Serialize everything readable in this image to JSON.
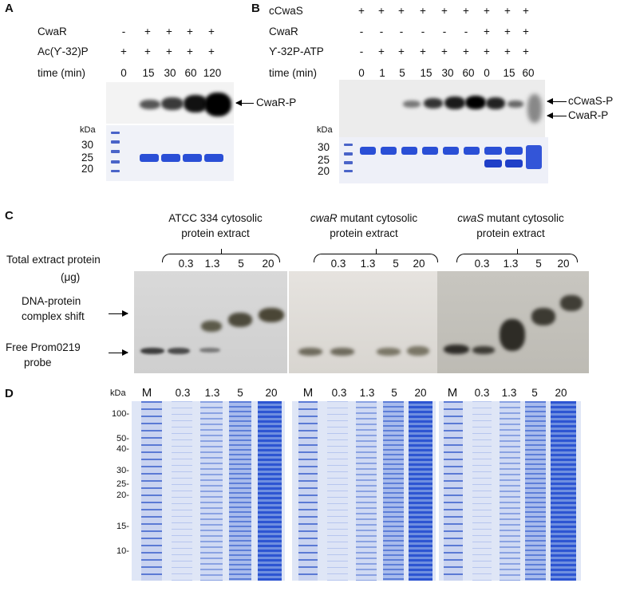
{
  "panels": {
    "a": "A",
    "b": "B",
    "c": "C",
    "d": "D"
  },
  "panel_a": {
    "row_labels": [
      "CwaR",
      "Ac(ϒ-32)P",
      "time (min)"
    ],
    "cwar_row": [
      "-",
      "+",
      "+",
      "+",
      "+"
    ],
    "acp_row": [
      "+",
      "+",
      "+",
      "+",
      "+"
    ],
    "times": [
      "0",
      "15",
      "30",
      "60",
      "120"
    ],
    "band_label": "CwaR-P",
    "kda_label": "kDa",
    "kda_ticks": [
      "30",
      "25",
      "20"
    ]
  },
  "panel_b": {
    "row_labels": [
      "cCwaS",
      "CwaR",
      "ϒ-32P-ATP",
      "time (min)"
    ],
    "ccwas_row": [
      "+",
      "+",
      "+",
      "+",
      "+",
      "+",
      "+",
      "+",
      "+"
    ],
    "cwar_row": [
      "-",
      "-",
      "-",
      "-",
      "-",
      "-",
      "+",
      "+",
      "+"
    ],
    "atp_row": [
      "-",
      "+",
      "+",
      "+",
      "+",
      "+",
      "+",
      "+",
      "+"
    ],
    "times": [
      "0",
      "1",
      "5",
      "15",
      "30",
      "60",
      "0",
      "15",
      "60"
    ],
    "band_labels": [
      "cCwaS-P",
      "CwaR-P"
    ],
    "kda_label": "kDa",
    "kda_ticks": [
      "30",
      "25",
      "20"
    ]
  },
  "panel_c": {
    "groups": [
      {
        "title_main": "ATCC 334 cytosolic",
        "title_italic": "",
        "title_line2": "protein extract"
      },
      {
        "title_main": " mutant cytosolic",
        "title_italic": "cwaR",
        "title_line2": "protein extract"
      },
      {
        "title_main": " mutant cytosolic",
        "title_italic": "cwaS",
        "title_line2": "protein extract"
      }
    ],
    "amounts": [
      "0.3",
      "1.3",
      "5",
      "20"
    ],
    "total_label_line1": "Total extract protein",
    "total_label_line2": "(μg)",
    "shift_label_line1": "DNA-protein",
    "shift_label_line2": "complex shift",
    "free_label_line1": "Free Prom0219",
    "free_label_line2": "probe"
  },
  "panel_d": {
    "kda_label": "kDa",
    "kda_ticks": [
      "100-",
      "50-",
      "40-",
      "30-",
      "25-",
      "20-",
      "15-",
      "10-"
    ],
    "lane_labels": [
      "M",
      "0.3",
      "1.3",
      "5",
      "20"
    ]
  }
}
